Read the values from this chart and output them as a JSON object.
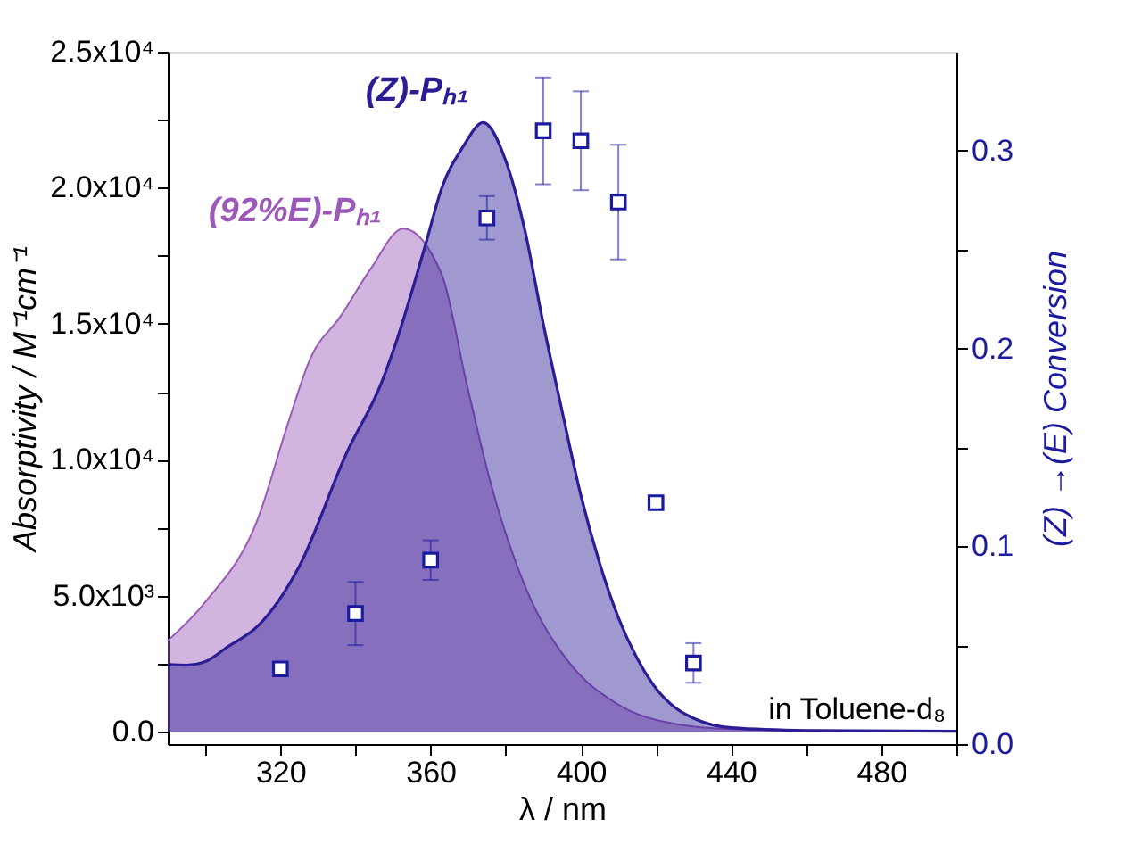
{
  "chart_data": {
    "type": "area",
    "xlabel": "λ / nm",
    "ylabel": "Absorptivity / M⁻¹cm⁻¹",
    "y2label": "(Z) →(E) Conversion",
    "xlim": [
      290,
      500
    ],
    "xticks": [
      {
        "value": 300,
        "label": null
      },
      320,
      {
        "value": 340,
        "label": null
      },
      360,
      {
        "value": 380,
        "label": null
      },
      400,
      {
        "value": 420,
        "label": null
      },
      440,
      {
        "value": 460,
        "label": null
      },
      480,
      {
        "value": 500,
        "label": null
      }
    ],
    "ylim": [
      -450,
      25000
    ],
    "yticks": [
      {
        "value": 0,
        "label": "0.0"
      },
      {
        "value": 2500,
        "label": null
      },
      {
        "value": 5000,
        "label": "5.0x10³"
      },
      {
        "value": 7500,
        "label": null
      },
      {
        "value": 10000,
        "label": "1.0x10⁴"
      },
      {
        "value": 12500,
        "label": null
      },
      {
        "value": 15000,
        "label": "1.5x10⁴"
      },
      {
        "value": 17500,
        "label": null
      },
      {
        "value": 20000,
        "label": "2.0x10⁴"
      },
      {
        "value": 22500,
        "label": null
      },
      {
        "value": 25000,
        "label": "2.5x10⁴"
      }
    ],
    "y2lim": [
      0,
      0.35
    ],
    "y2ticks": [
      {
        "value": 0,
        "label": "0.0"
      },
      {
        "value": 0.05,
        "label": null
      },
      0.1,
      {
        "value": 0.15,
        "label": null
      },
      0.2,
      {
        "value": 0.25,
        "label": null
      },
      0.3
    ],
    "grid": false,
    "legend": false,
    "annotations": [
      "in Toluene-d₈"
    ],
    "series": [
      {
        "name": "(92%E)-Pₕ₁",
        "color": "#9b5ab8",
        "x": [
          290,
          300,
          314,
          322,
          328,
          336,
          344,
          352.7,
          363,
          369.5,
          376,
          385.6,
          396.7,
          409.4,
          425.6,
          440,
          470,
          500
        ],
        "values": [
          3350,
          4770,
          7830,
          11330,
          13730,
          15270,
          17010,
          18500,
          16800,
          12860,
          9140,
          5200,
          2580,
          1050,
          280,
          100,
          40,
          20
        ]
      },
      {
        "name": "(Z)-Pₕ₁",
        "color": "#2a1d95",
        "x": [
          290,
          295,
          300,
          306,
          314,
          325,
          337.6,
          347,
          351,
          358.6,
          363,
          368.6,
          374,
          380,
          385,
          390,
          395,
          400,
          405,
          410,
          415,
          420,
          425,
          430,
          440,
          460,
          500
        ],
        "values": [
          2470,
          2450,
          2580,
          3130,
          3890,
          6080,
          10240,
          12860,
          14400,
          17890,
          20000,
          21500,
          22400,
          21000,
          18500,
          15000,
          11800,
          8700,
          6200,
          4200,
          2700,
          1600,
          900,
          500,
          150,
          50,
          20
        ]
      },
      {
        "type": "scatter",
        "axis": "y2",
        "marker": "square",
        "color": "#1c1a9e",
        "x": [
          320,
          340,
          360,
          375,
          390,
          400,
          410,
          420,
          430
        ],
        "values": [
          0.038,
          0.066,
          0.093,
          0.266,
          0.31,
          0.305,
          0.274,
          0.122,
          0.041
        ],
        "errors": [
          null,
          0.016,
          0.01,
          0.011,
          0.027,
          0.025,
          0.029,
          0.002,
          0.01
        ]
      }
    ]
  }
}
